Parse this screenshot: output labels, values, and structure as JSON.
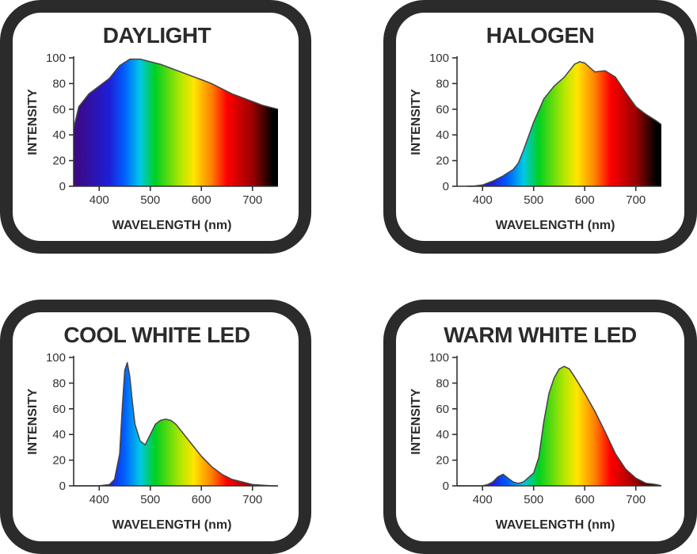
{
  "colors": {
    "frame": "#2b2b2b",
    "spectrum": [
      "#3a0a8a",
      "#1e1ed8",
      "#0060ff",
      "#00c8e6",
      "#00d020",
      "#b6e600",
      "#ffe600",
      "#ff8000",
      "#ff0000",
      "#9a0000",
      "#000000"
    ]
  },
  "chart_data": [
    {
      "type": "area",
      "title": "DAYLIGHT",
      "xlabel": "WAVELENGTH (nm)",
      "ylabel": "INTENSITY",
      "xlim": [
        350,
        750
      ],
      "ylim": [
        0,
        100
      ],
      "xticks": [
        400,
        500,
        600,
        700
      ],
      "yticks": [
        0,
        20,
        40,
        60,
        80,
        100
      ],
      "x": [
        350,
        360,
        380,
        400,
        420,
        440,
        460,
        480,
        500,
        520,
        540,
        560,
        580,
        600,
        620,
        640,
        660,
        680,
        700,
        720,
        740,
        750
      ],
      "y": [
        45,
        62,
        72,
        78,
        84,
        94,
        99,
        99,
        97,
        95,
        92,
        89,
        86,
        83,
        80,
        76,
        72,
        69,
        66,
        63,
        61,
        60
      ]
    },
    {
      "type": "area",
      "title": "HALOGEN",
      "xlabel": "WAVELENGTH (nm)",
      "ylabel": "INTENSITY",
      "xlim": [
        350,
        750
      ],
      "ylim": [
        0,
        100
      ],
      "xticks": [
        400,
        500,
        600,
        700
      ],
      "yticks": [
        0,
        20,
        40,
        60,
        80,
        100
      ],
      "x": [
        370,
        380,
        400,
        420,
        440,
        460,
        470,
        480,
        500,
        520,
        540,
        560,
        580,
        590,
        600,
        620,
        640,
        660,
        680,
        700,
        720,
        740,
        750
      ],
      "y": [
        0,
        0,
        1,
        4,
        8,
        13,
        18,
        28,
        50,
        68,
        78,
        85,
        95,
        97,
        96,
        89,
        90,
        85,
        73,
        62,
        56,
        51,
        48
      ]
    },
    {
      "type": "area",
      "title": "COOL WHITE LED",
      "xlabel": "WAVELENGTH (nm)",
      "ylabel": "INTENSITY",
      "xlim": [
        350,
        750
      ],
      "ylim": [
        0,
        100
      ],
      "xticks": [
        400,
        500,
        600,
        700
      ],
      "yticks": [
        0,
        20,
        40,
        60,
        80,
        100
      ],
      "x": [
        350,
        400,
        420,
        430,
        440,
        445,
        450,
        455,
        460,
        465,
        470,
        480,
        490,
        500,
        510,
        520,
        530,
        540,
        550,
        560,
        580,
        600,
        620,
        640,
        660,
        680,
        700,
        720,
        740,
        750
      ],
      "y": [
        0,
        0,
        1,
        5,
        25,
        60,
        90,
        96,
        85,
        65,
        48,
        35,
        32,
        40,
        48,
        51,
        52,
        51,
        48,
        43,
        33,
        23,
        15,
        9,
        5,
        3,
        1,
        0.5,
        0,
        0
      ]
    },
    {
      "type": "area",
      "title": "WARM WHITE LED",
      "xlabel": "WAVELENGTH (nm)",
      "ylabel": "INTENSITY",
      "xlim": [
        350,
        750
      ],
      "ylim": [
        0,
        100
      ],
      "xticks": [
        400,
        500,
        600,
        700
      ],
      "yticks": [
        0,
        20,
        40,
        60,
        80,
        100
      ],
      "x": [
        350,
        400,
        410,
        420,
        430,
        440,
        450,
        460,
        470,
        480,
        500,
        510,
        520,
        530,
        540,
        550,
        560,
        570,
        580,
        600,
        620,
        640,
        660,
        680,
        700,
        720,
        740,
        750
      ],
      "y": [
        0,
        0,
        1,
        3,
        7,
        9,
        6,
        3,
        2,
        3,
        10,
        22,
        50,
        72,
        84,
        91,
        93,
        91,
        85,
        72,
        58,
        42,
        25,
        13,
        6,
        2,
        1,
        0
      ]
    }
  ]
}
